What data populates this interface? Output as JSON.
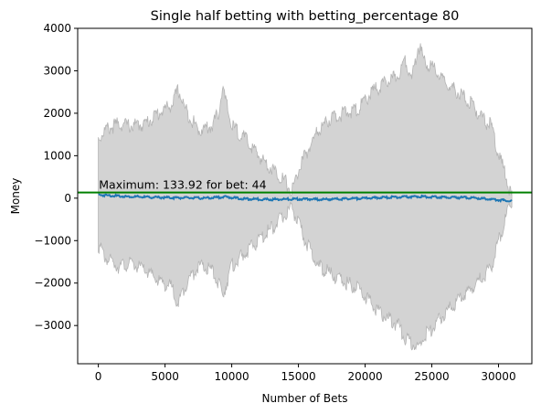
{
  "chart_data": {
    "type": "line",
    "title": "Single half betting with betting_percentage 80",
    "xlabel": "Number of Bets",
    "ylabel": "Money",
    "xlim": [
      -1550,
      32500
    ],
    "ylim": [
      -3900,
      4000
    ],
    "xticks": [
      0,
      5000,
      10000,
      15000,
      20000,
      25000,
      30000
    ],
    "xtick_labels": [
      "0",
      "5000",
      "10000",
      "15000",
      "20000",
      "25000",
      "30000"
    ],
    "yticks": [
      -3000,
      -2000,
      -1000,
      0,
      1000,
      2000,
      3000,
      4000
    ],
    "ytick_labels": [
      "−3000",
      "−2000",
      "−1000",
      "0",
      "1000",
      "2000",
      "3000",
      "4000"
    ],
    "grid": false,
    "colors": {
      "mean": "#1f77b4",
      "band": "#d3d3d3",
      "band_edge": "#b4b4b4",
      "max_line": "#008000"
    },
    "max_line": {
      "y": 133.92
    },
    "annotation": {
      "text": "Maximum: 133.92 for bet: 44",
      "x": 44,
      "y": 133.92
    },
    "series": [
      {
        "role": "mean",
        "x": [
          0,
          2000,
          4000,
          6000,
          8000,
          9500,
          11000,
          13000,
          15000,
          17000,
          19000,
          21000,
          23000,
          24000,
          26000,
          28000,
          30000,
          31000
        ],
        "y": [
          80,
          40,
          20,
          10,
          0,
          30,
          -20,
          -30,
          -20,
          -30,
          -10,
          10,
          30,
          40,
          20,
          10,
          -40,
          -70
        ]
      },
      {
        "role": "band",
        "x": [
          0,
          500,
          1500,
          2500,
          3500,
          4500,
          5500,
          6000,
          6500,
          7500,
          8500,
          9000,
          9300,
          10000,
          11000,
          12000,
          13000,
          14000,
          14500,
          15000,
          15500,
          16500,
          17500,
          18500,
          19500,
          20500,
          21500,
          22500,
          23000,
          23500,
          24000,
          24500,
          25000,
          26000,
          27000,
          28000,
          29000,
          29500,
          30000,
          30500,
          31000
        ],
        "upper": [
          1400,
          1600,
          1750,
          1700,
          1750,
          2000,
          2200,
          2550,
          2100,
          1600,
          1700,
          2000,
          2600,
          1700,
          1400,
          1000,
          700,
          400,
          150,
          650,
          1000,
          1600,
          1900,
          2000,
          2100,
          2500,
          2700,
          2900,
          3300,
          2800,
          3600,
          3200,
          3100,
          2700,
          2500,
          2200,
          1800,
          1700,
          1000,
          600,
          0
        ],
        "lower": [
          -1100,
          -1400,
          -1600,
          -1550,
          -1700,
          -1950,
          -2100,
          -2500,
          -2050,
          -1600,
          -1700,
          -2000,
          -2300,
          -1600,
          -1300,
          -1000,
          -700,
          -400,
          -200,
          -600,
          -1000,
          -1600,
          -1800,
          -2000,
          -2100,
          -2500,
          -2800,
          -3000,
          -3300,
          -3400,
          -3550,
          -3200,
          -3100,
          -2700,
          -2400,
          -2100,
          -1800,
          -1600,
          -1000,
          -550,
          -50
        ]
      }
    ]
  }
}
